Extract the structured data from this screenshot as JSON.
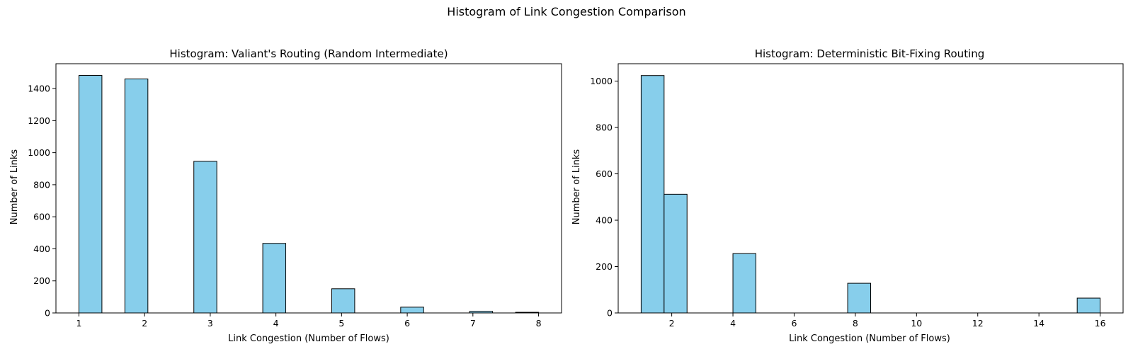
{
  "figure": {
    "suptitle": "Histogram of Link Congestion Comparison"
  },
  "chart_data": [
    {
      "type": "bar",
      "subtype": "histogram",
      "title": "Histogram: Valiant's Routing (Random Intermediate)",
      "xlabel": "Link Congestion (Number of Flows)",
      "ylabel": "Number of Links",
      "xlim": [
        0.65,
        8.35
      ],
      "ylim": [
        0,
        1555
      ],
      "xticks": [
        1,
        2,
        3,
        4,
        5,
        6,
        7,
        8
      ],
      "yticks": [
        0,
        200,
        400,
        600,
        800,
        1000,
        1200,
        1400
      ],
      "bin_edges": [
        1,
        1.35,
        1.7,
        2.05,
        2.4,
        2.75,
        3.1,
        3.45,
        3.8,
        4.15,
        4.5,
        4.85,
        5.2,
        5.55,
        5.9,
        6.25,
        6.6,
        6.95,
        7.3,
        7.65,
        8
      ],
      "counts": [
        1482,
        0,
        1460,
        0,
        0,
        946,
        0,
        0,
        434,
        0,
        0,
        151,
        0,
        0,
        36,
        0,
        0,
        10,
        0,
        4
      ],
      "bar_color": "#87CEEB",
      "edge_color": "#000000",
      "grid": false
    },
    {
      "type": "bar",
      "subtype": "histogram",
      "title": "Histogram: Deterministic Bit-Fixing Routing",
      "xlabel": "Link Congestion (Number of Flows)",
      "ylabel": "Number of Links",
      "xlim": [
        0.25,
        16.75
      ],
      "ylim": [
        0,
        1075
      ],
      "xticks": [
        2,
        4,
        6,
        8,
        10,
        12,
        14,
        16
      ],
      "yticks": [
        0,
        200,
        400,
        600,
        800,
        1000
      ],
      "bin_edges": [
        1,
        1.75,
        2.5,
        3.25,
        4,
        4.75,
        5.5,
        6.25,
        7,
        7.75,
        8.5,
        9.25,
        10,
        10.75,
        11.5,
        12.25,
        13,
        13.75,
        14.5,
        15.25,
        16
      ],
      "counts": [
        1024,
        512,
        0,
        0,
        256,
        0,
        0,
        0,
        0,
        128,
        0,
        0,
        0,
        0,
        0,
        0,
        0,
        0,
        0,
        64
      ],
      "bar_color": "#87CEEB",
      "edge_color": "#000000",
      "grid": false
    }
  ]
}
